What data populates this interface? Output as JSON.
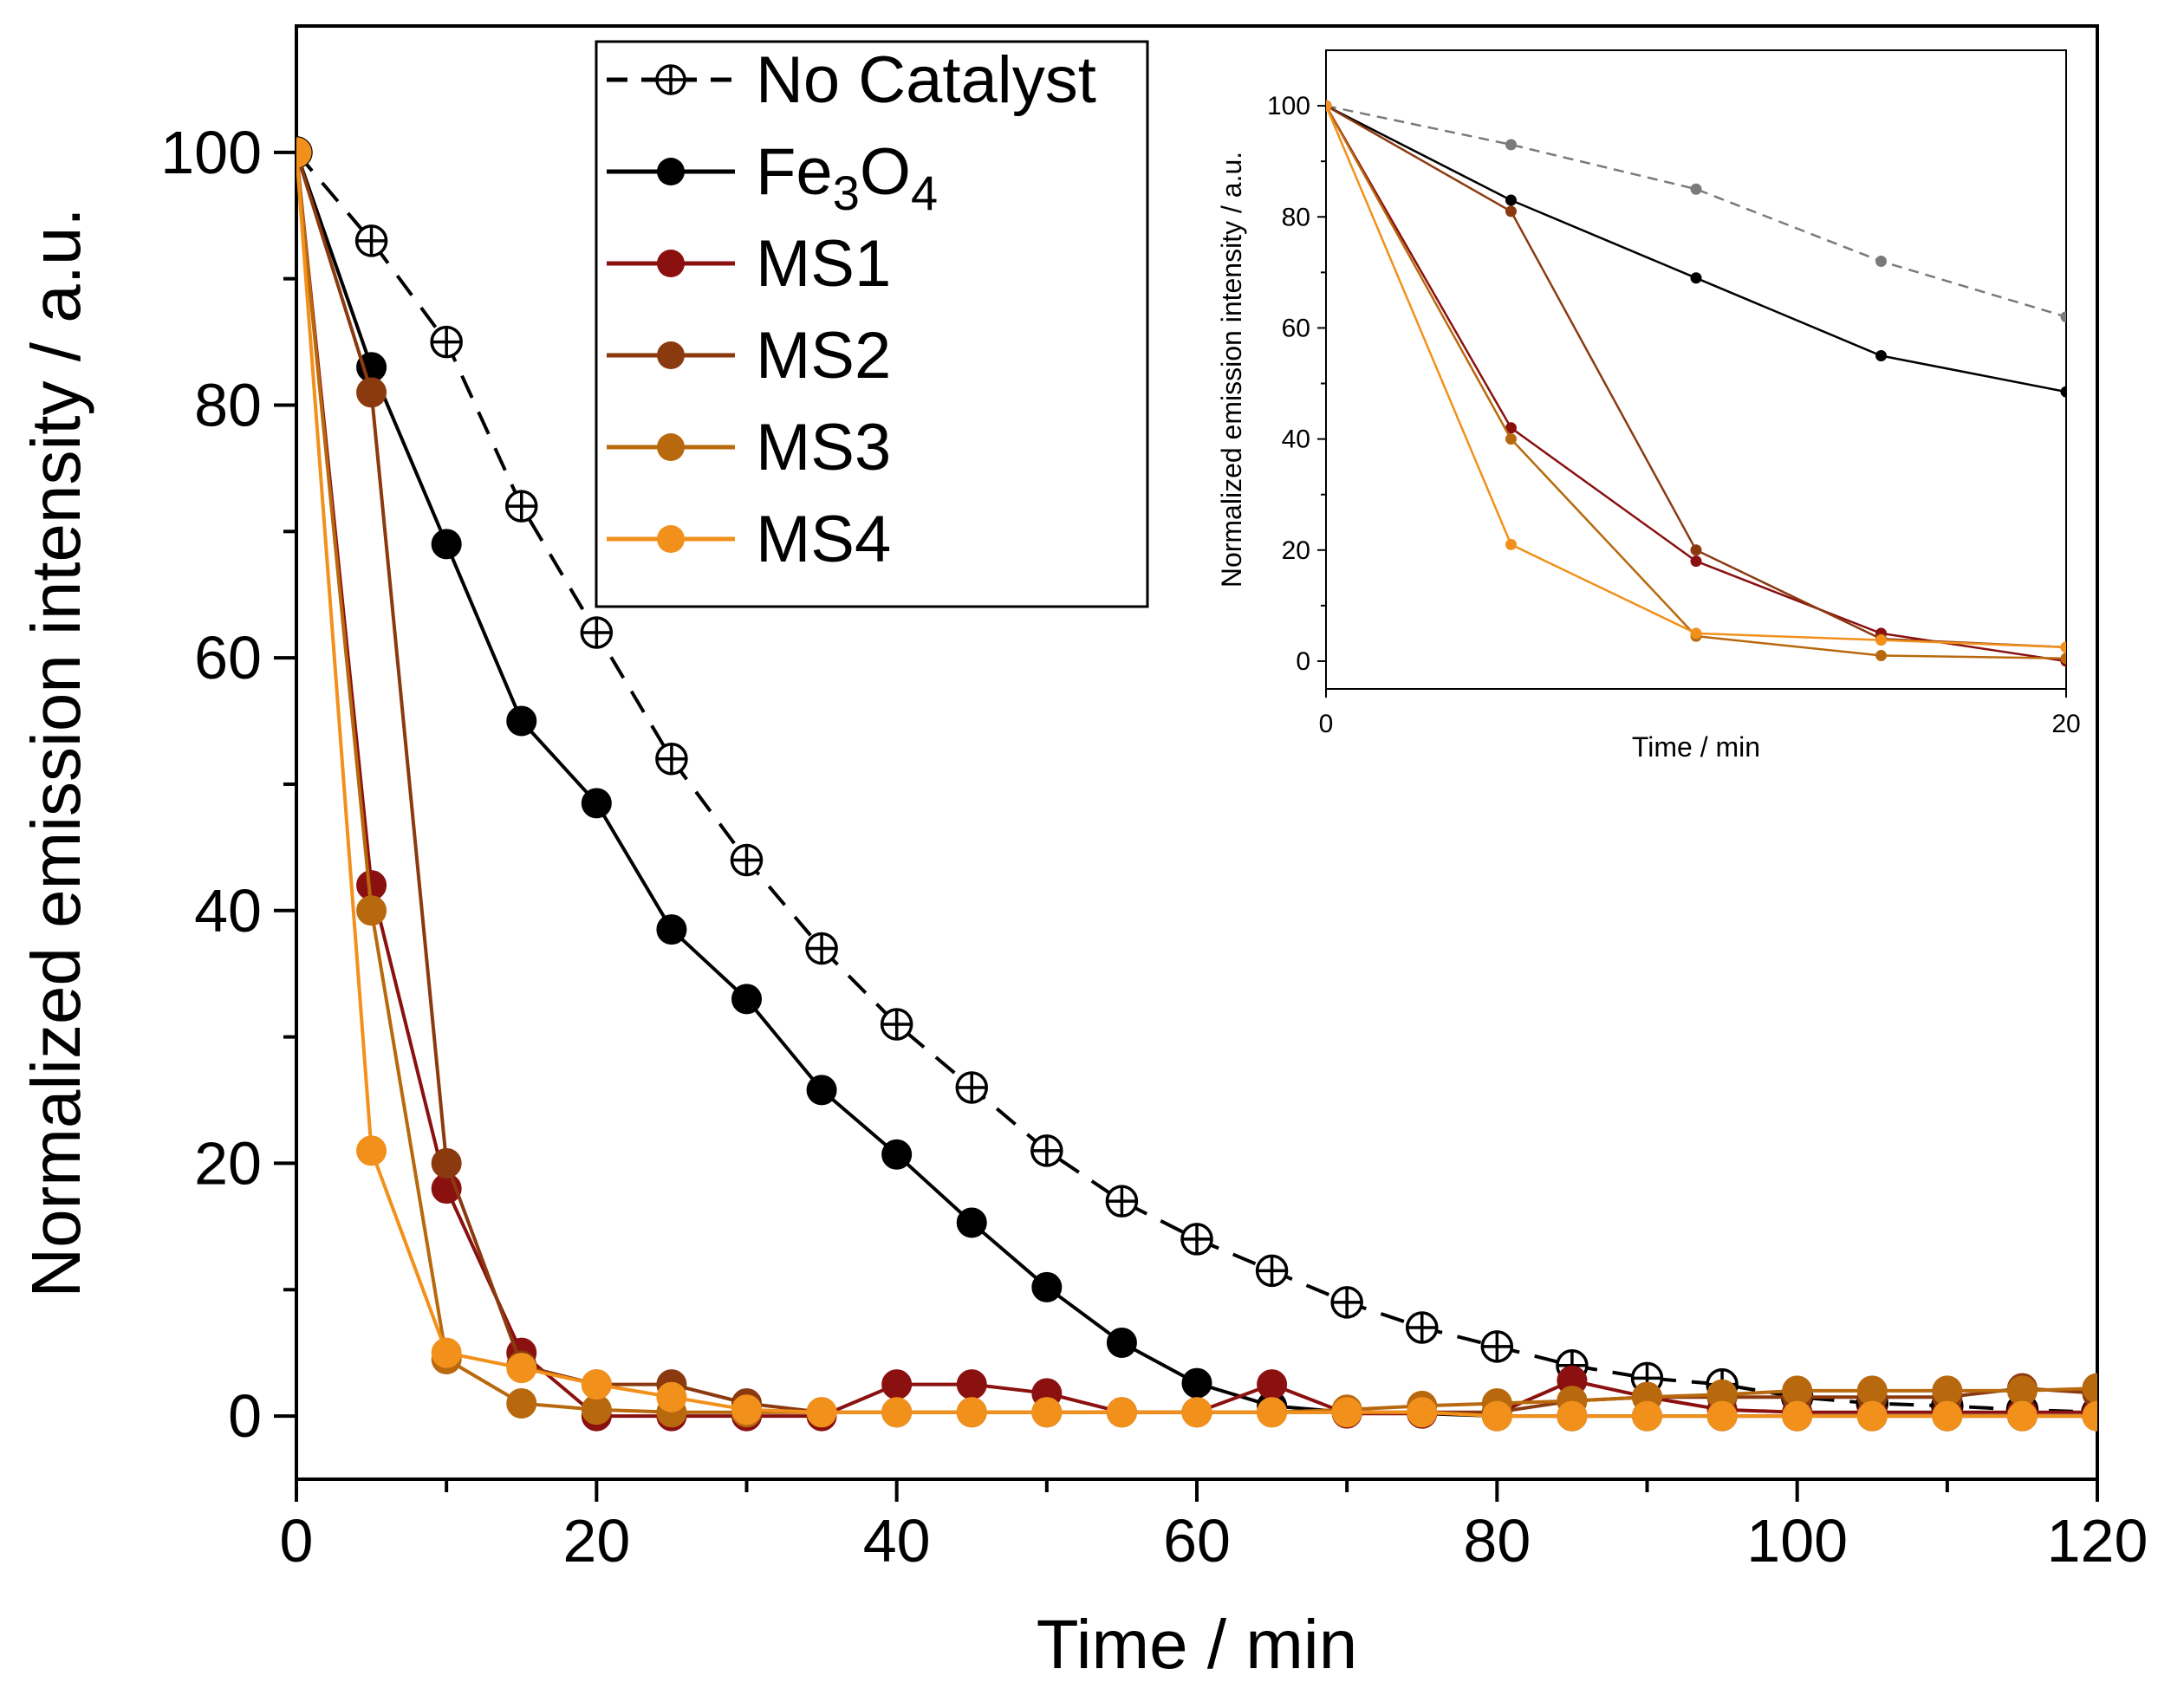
{
  "chart_data": [
    {
      "type": "line",
      "title": "",
      "xlabel": "Time / min",
      "ylabel": "Normalized emission intensity / a.u.",
      "xlim": [
        0,
        120
      ],
      "ylim": [
        -5,
        110
      ],
      "xticks": [
        0,
        20,
        40,
        60,
        80,
        100,
        120
      ],
      "yticks": [
        0,
        20,
        40,
        60,
        80,
        100
      ],
      "xtick_labels": [
        "0",
        "20",
        "40",
        "60",
        "80",
        "100",
        "120"
      ],
      "ytick_labels": [
        "0",
        "20",
        "40",
        "60",
        "80",
        "100"
      ],
      "legend_position": "top-center",
      "series": [
        {
          "name": "No Catalyst",
          "label_main": "No Catalyst",
          "label_sub": "",
          "label_tail": "",
          "color": "#000000",
          "marker": "crossed-circle",
          "dashed": true,
          "x": [
            0,
            5,
            10,
            15,
            20,
            25,
            30,
            35,
            40,
            45,
            50,
            55,
            60,
            65,
            70,
            75,
            80,
            85,
            90,
            95,
            100,
            105,
            110,
            115,
            120
          ],
          "y": [
            100,
            93,
            85,
            72,
            62,
            52,
            44,
            37,
            31,
            26,
            21,
            17,
            14,
            11.5,
            9,
            7,
            5.5,
            4,
            3,
            2.5,
            1.5,
            1,
            0.8,
            0.5,
            0.3
          ]
        },
        {
          "name": "Fe3O4",
          "label_main": "Fe",
          "label_sub": "3",
          "label_mid": "O",
          "label_tail": "4",
          "color": "#000000",
          "marker": "filled",
          "dashed": false,
          "x": [
            0,
            5,
            10,
            15,
            20,
            25,
            30,
            35,
            40,
            45,
            50,
            55,
            60,
            65,
            70,
            75,
            80,
            85,
            90,
            95,
            100,
            105,
            110,
            115,
            120
          ],
          "y": [
            100,
            83,
            69,
            55,
            48.5,
            38.5,
            33,
            25.8,
            20.7,
            15.3,
            10.2,
            5.8,
            2.6,
            0.8,
            0.3,
            0.2,
            0,
            0,
            0,
            0,
            0,
            0,
            0,
            0,
            0
          ]
        },
        {
          "name": "MS1",
          "label_main": "MS1",
          "color": "#8b1010",
          "marker": "filled",
          "dashed": false,
          "x": [
            0,
            5,
            10,
            15,
            20,
            25,
            30,
            35,
            40,
            45,
            50,
            55,
            60,
            65,
            70,
            75,
            80,
            85,
            90,
            95,
            100,
            105,
            110,
            115,
            120
          ],
          "y": [
            100,
            42,
            18,
            5,
            0,
            0,
            0,
            0,
            2.5,
            2.5,
            1.8,
            0.3,
            0.3,
            2.5,
            0.2,
            0.2,
            0.2,
            2.8,
            1.5,
            0.5,
            0.3,
            0.3,
            0.3,
            0.3,
            0.3
          ]
        },
        {
          "name": "MS2",
          "label_main": "MS2",
          "color": "#8b3a10",
          "marker": "filled",
          "dashed": false,
          "x": [
            0,
            5,
            10,
            15,
            20,
            25,
            30,
            35,
            40,
            45,
            50,
            55,
            60,
            65,
            70,
            75,
            80,
            85,
            90,
            95,
            100,
            105,
            110,
            115,
            120
          ],
          "y": [
            100,
            81,
            20,
            4,
            2.5,
            2.5,
            1,
            0.3,
            0.3,
            0.3,
            0.3,
            0.3,
            0.3,
            0.3,
            0.3,
            0.3,
            0.3,
            1.2,
            1.5,
            1.5,
            1.5,
            1.5,
            1.5,
            2.2,
            1.8
          ]
        },
        {
          "name": "MS3",
          "label_main": "MS3",
          "color": "#b8690e",
          "marker": "filled",
          "dashed": false,
          "x": [
            0,
            5,
            10,
            15,
            20,
            25,
            30,
            35,
            40,
            45,
            50,
            55,
            60,
            65,
            70,
            75,
            80,
            85,
            90,
            95,
            100,
            105,
            110,
            115,
            120
          ],
          "y": [
            100,
            40,
            4.5,
            1,
            0.5,
            0.3,
            0.3,
            0.3,
            0.3,
            0.3,
            0.3,
            0.3,
            0.3,
            0.3,
            0.5,
            0.8,
            1,
            1.2,
            1.5,
            1.7,
            2,
            2,
            2,
            2,
            2.2
          ]
        },
        {
          "name": "MS4",
          "label_main": "MS4",
          "color": "#f2901c",
          "marker": "filled",
          "dashed": false,
          "x": [
            0,
            5,
            10,
            15,
            20,
            25,
            30,
            35,
            40,
            45,
            50,
            55,
            60,
            65,
            70,
            75,
            80,
            85,
            90,
            95,
            100,
            105,
            110,
            115,
            120
          ],
          "y": [
            100,
            21,
            5,
            3.8,
            2.5,
            1.5,
            0.5,
            0.3,
            0.3,
            0.3,
            0.3,
            0.3,
            0.3,
            0.3,
            0.3,
            0.3,
            0,
            0,
            0,
            0,
            0,
            0,
            0,
            0,
            0
          ]
        }
      ]
    },
    {
      "type": "line",
      "title": "",
      "xlabel": "Time / min",
      "ylabel": "Normalized emission intensity / a.u.",
      "xlim": [
        0,
        20
      ],
      "ylim": [
        -5,
        110
      ],
      "xticks": [
        0,
        20
      ],
      "yticks": [
        0,
        20,
        40,
        60,
        80,
        100
      ],
      "xtick_labels": [
        "0",
        "20"
      ],
      "ytick_labels": [
        "0",
        "20",
        "40",
        "60",
        "80",
        "100"
      ],
      "series": [
        {
          "name": "No Catalyst",
          "color": "#7a7a7a",
          "marker": "filled",
          "dashed": true,
          "x": [
            0,
            5,
            10,
            15,
            20
          ],
          "y": [
            100,
            93,
            85,
            72,
            62
          ]
        },
        {
          "name": "Fe3O4",
          "color": "#000000",
          "marker": "filled",
          "dashed": false,
          "x": [
            0,
            5,
            10,
            15,
            20
          ],
          "y": [
            100,
            83,
            69,
            55,
            48.5
          ]
        },
        {
          "name": "MS1",
          "color": "#8b1010",
          "marker": "filled",
          "dashed": false,
          "x": [
            0,
            5,
            10,
            15,
            20
          ],
          "y": [
            100,
            42,
            18,
            5,
            0
          ]
        },
        {
          "name": "MS2",
          "color": "#8b3a10",
          "marker": "filled",
          "dashed": false,
          "x": [
            0,
            5,
            10,
            15,
            20
          ],
          "y": [
            100,
            81,
            20,
            4,
            2.5
          ]
        },
        {
          "name": "MS3",
          "color": "#b8690e",
          "marker": "filled",
          "dashed": false,
          "x": [
            0,
            5,
            10,
            15,
            20
          ],
          "y": [
            100,
            40,
            4.5,
            1,
            0.5
          ]
        },
        {
          "name": "MS4",
          "color": "#f2901c",
          "marker": "filled",
          "dashed": false,
          "x": [
            0,
            5,
            10,
            15,
            20
          ],
          "y": [
            100,
            21,
            5,
            3.8,
            2.5
          ]
        }
      ]
    }
  ]
}
